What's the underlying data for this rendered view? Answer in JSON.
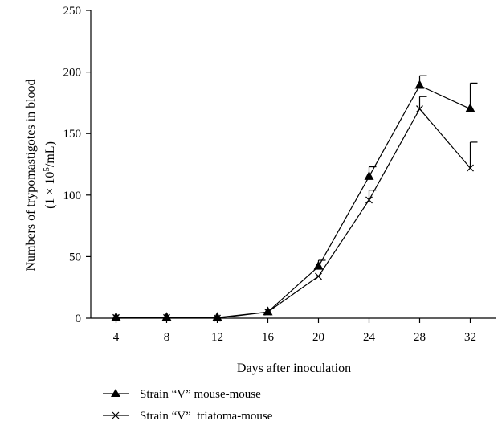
{
  "chart_data": {
    "type": "line",
    "xlabel": "Days after inoculation",
    "ylabel": "Numbers of trypomastigotes in blood",
    "ylabel_unit_prefix": "(1 × 10",
    "ylabel_unit_exp": "5",
    "ylabel_unit_suffix": "/mL)",
    "categories": [
      "4",
      "8",
      "12",
      "16",
      "20",
      "24",
      "28",
      "32"
    ],
    "x": [
      4,
      8,
      12,
      16,
      20,
      24,
      28,
      32
    ],
    "xlim": [
      2,
      34
    ],
    "ylim": [
      0,
      250
    ],
    "yticks": [
      "0",
      "50",
      "100",
      "150",
      "200",
      "250"
    ],
    "ytick_values": [
      0,
      50,
      100,
      150,
      200,
      250
    ],
    "grid": false,
    "legend_position": "bottom-left",
    "series": [
      {
        "name": "Strain “V” mouse-mouse",
        "marker": "filled-triangle",
        "color": "#000000",
        "values": [
          0.5,
          0.5,
          0.5,
          5,
          42,
          115,
          189,
          170
        ],
        "error_upper": [
          0,
          0,
          0,
          0,
          5,
          8,
          8,
          21
        ]
      },
      {
        "name": "Strain “V”  triatoma-mouse",
        "marker": "x",
        "color": "#000000",
        "values": [
          0.5,
          0.5,
          0,
          5,
          34,
          96,
          170,
          122
        ],
        "error_upper": [
          0,
          0,
          0,
          0,
          0,
          8,
          10,
          21
        ]
      }
    ]
  }
}
